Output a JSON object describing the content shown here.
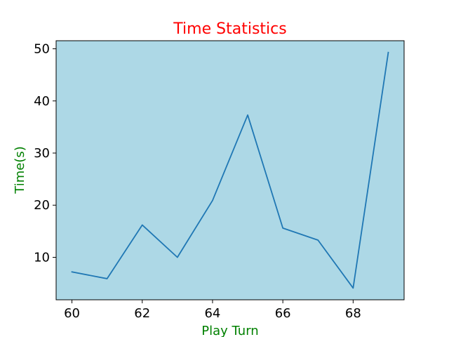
{
  "chart_data": {
    "type": "line",
    "title": "Time Statistics",
    "xlabel": "Play Turn",
    "ylabel": "Time(s)",
    "x": [
      60,
      61,
      62,
      63,
      64,
      65,
      66,
      67,
      68,
      69
    ],
    "series": [
      {
        "values": [
          7.2,
          5.9,
          16.2,
          10.0,
          20.9,
          37.3,
          15.6,
          13.3,
          4.1,
          49.3
        ]
      }
    ],
    "xlim": [
      59.55,
      69.45
    ],
    "ylim": [
      1.85,
      51.55
    ],
    "xticks": [
      60,
      62,
      64,
      66,
      68
    ],
    "yticks": [
      10,
      20,
      30,
      40,
      50
    ],
    "grid": false,
    "legend": "none"
  },
  "colors": {
    "plot_background": "#add8e6",
    "line": "#1f77b4",
    "title": "#ff0000",
    "axis_labels": "#008000",
    "axes": "#000000"
  }
}
